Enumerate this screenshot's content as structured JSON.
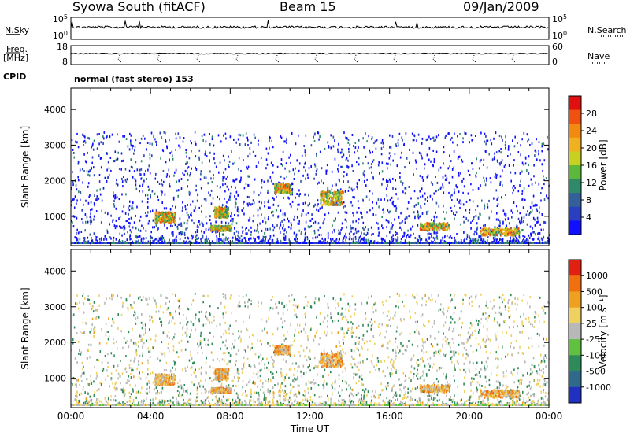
{
  "header": {
    "station": "Syowa South (fitACF)",
    "beam": "Beam 15",
    "date": "09/Jan/2009"
  },
  "panels": {
    "nsky_label": "N.Sky",
    "nsearch_label": "N.Search",
    "freq_label": "Freq.",
    "freq_unit": "[MHz]",
    "nave_label": "Nave",
    "cpid_label": "CPID",
    "cpid_value": "normal (fast stereo) 153",
    "nsky_ticks": [
      "10^5",
      "10^0"
    ],
    "nsearch_ticks": [
      "10^5",
      "10^0"
    ],
    "freq_ticks": [
      "18",
      "8"
    ],
    "nave_ticks": [
      "60",
      "0"
    ]
  },
  "chart_data": [
    {
      "type": "heatmap",
      "name": "power",
      "ylabel": "Slant Range [km]",
      "xlabel": "",
      "colorbar_label": "Power [dB]",
      "colorbar_ticks": [
        "28",
        "24",
        "20",
        "16",
        "12",
        "8",
        "4"
      ],
      "colors": [
        "#1010ff",
        "#2a3fc0",
        "#335f9a",
        "#2f8a6a",
        "#5cb83a",
        "#c8d020",
        "#f0b020",
        "#f08a10",
        "#f05010",
        "#e01010"
      ],
      "xlim": [
        0,
        24
      ],
      "ylim": [
        180,
        4600
      ],
      "yticks": [
        1000,
        2000,
        3000,
        4000
      ],
      "xticks": [
        "00:00",
        "04:00",
        "08:00",
        "12:00",
        "16:00",
        "20:00",
        "00:00"
      ]
    },
    {
      "type": "heatmap",
      "name": "velocity",
      "ylabel": "Slant Range [km]",
      "xlabel": "Time UT",
      "colorbar_label": "Velocity [m s⁻¹]",
      "colorbar_ticks": [
        "1000",
        "500",
        "100",
        "25",
        "-25",
        "-100",
        "-500",
        "-1000"
      ],
      "colors": [
        "#2030c0",
        "#2f6a8a",
        "#2f8a5a",
        "#60c040",
        "#b8b8b8",
        "#f0d060",
        "#f0a020",
        "#f07010",
        "#e02010"
      ],
      "xlim": [
        0,
        24
      ],
      "ylim": [
        180,
        4600
      ],
      "yticks": [
        1000,
        2000,
        3000,
        4000
      ],
      "xticks": [
        "00:00",
        "04:00",
        "08:00",
        "12:00",
        "16:00",
        "20:00",
        "00:00"
      ]
    }
  ]
}
